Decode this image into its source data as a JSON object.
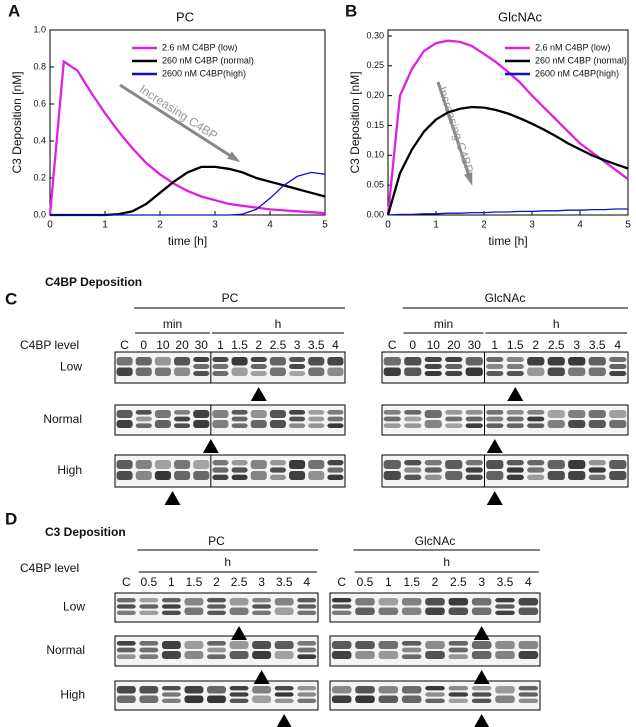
{
  "chart_data": [
    {
      "type": "line",
      "panel": "A",
      "title": "PC",
      "xlabel": "time [h]",
      "ylabel": "C3 Deposition [nM]",
      "annotation": "Increasing C4BP",
      "x": [
        0,
        0.25,
        0.5,
        0.75,
        1,
        1.25,
        1.5,
        1.75,
        2,
        2.25,
        2.5,
        2.75,
        3,
        3.25,
        3.5,
        3.75,
        4,
        4.25,
        4.5,
        4.75,
        5
      ],
      "xlim": [
        0,
        5
      ],
      "xticks": [
        0,
        1,
        2,
        3,
        4,
        5
      ],
      "ylim": [
        0,
        1.0
      ],
      "yticks": [
        {
          "value": 0,
          "label": "0.0"
        },
        0.2,
        0.4,
        0.6,
        0.8,
        {
          "value": 1.0,
          "label": "1.0"
        }
      ],
      "series": [
        {
          "name": "2.6 nM C4BP (low)",
          "color": "#e020e0",
          "values": [
            0,
            0.83,
            0.78,
            0.66,
            0.55,
            0.45,
            0.36,
            0.28,
            0.22,
            0.17,
            0.13,
            0.1,
            0.08,
            0.06,
            0.05,
            0.04,
            0.03,
            0.025,
            0.02,
            0.015,
            0.01
          ]
        },
        {
          "name": "260 nM C4BP (normal)",
          "color": "#000000",
          "values": [
            0,
            0,
            0,
            0,
            0,
            0.005,
            0.02,
            0.06,
            0.12,
            0.18,
            0.23,
            0.26,
            0.26,
            0.25,
            0.23,
            0.2,
            0.18,
            0.16,
            0.14,
            0.12,
            0.1
          ]
        },
        {
          "name": "2600 nM C4BP(high)",
          "color": "#1010c0",
          "values": [
            0,
            0,
            0,
            0,
            0,
            0,
            0,
            0,
            0,
            0,
            0,
            0,
            0,
            0,
            0.005,
            0.03,
            0.09,
            0.16,
            0.21,
            0.23,
            0.22
          ]
        }
      ]
    },
    {
      "type": "line",
      "panel": "B",
      "title": "GlcNAc",
      "xlabel": "time [h]",
      "ylabel": "C3 Deposition [nM]",
      "annotation": "Increasing C4BP",
      "x": [
        0,
        0.25,
        0.5,
        0.75,
        1,
        1.25,
        1.5,
        1.75,
        2,
        2.25,
        2.5,
        2.75,
        3,
        3.25,
        3.5,
        3.75,
        4,
        4.25,
        4.5,
        4.75,
        5
      ],
      "xlim": [
        0,
        5
      ],
      "xticks": [
        0,
        1,
        2,
        3,
        4,
        5
      ],
      "ylim": [
        0,
        0.31
      ],
      "yticks": [
        {
          "value": 0,
          "label": "0.00"
        },
        0.05,
        {
          "value": 0.1,
          "label": "0.10"
        },
        0.15,
        {
          "value": 0.2,
          "label": "0.20"
        },
        0.25,
        {
          "value": 0.3,
          "label": "0.30"
        }
      ],
      "series": [
        {
          "name": "2.6 nM C4BP (low)",
          "color": "#e020e0",
          "values": [
            0,
            0.2,
            0.245,
            0.275,
            0.288,
            0.292,
            0.29,
            0.283,
            0.27,
            0.256,
            0.24,
            0.222,
            0.2,
            0.18,
            0.16,
            0.14,
            0.12,
            0.105,
            0.09,
            0.075,
            0.06
          ]
        },
        {
          "name": "260 nM C4BP (normal)",
          "color": "#000000",
          "values": [
            0,
            0.07,
            0.11,
            0.14,
            0.16,
            0.172,
            0.178,
            0.181,
            0.18,
            0.176,
            0.17,
            0.162,
            0.153,
            0.143,
            0.132,
            0.12,
            0.11,
            0.1,
            0.092,
            0.085,
            0.078
          ]
        },
        {
          "name": "2600 nM C4BP(high)",
          "color": "#1010c0",
          "values": [
            0,
            0.001,
            0.001,
            0.002,
            0.002,
            0.003,
            0.003,
            0.004,
            0.004,
            0.005,
            0.005,
            0.006,
            0.006,
            0.007,
            0.007,
            0.008,
            0.008,
            0.009,
            0.009,
            0.01,
            0.01
          ]
        }
      ]
    }
  ],
  "blots": [
    {
      "panel": "C",
      "title": "C4BP Deposition",
      "row_header": "C4BP level",
      "rows": [
        "Low",
        "Normal",
        "High"
      ],
      "groups": [
        {
          "title": "PC",
          "units": [
            "min",
            "h"
          ],
          "lanes": [
            "C",
            "0",
            "10",
            "20",
            "30",
            "1",
            "1.5",
            "2",
            "2.5",
            "3",
            "3.5",
            "4"
          ]
        },
        {
          "title": "GlcNAc",
          "units": [
            "min",
            "h"
          ],
          "lanes": [
            "C",
            "0",
            "10",
            "20",
            "30",
            "1",
            "1.5",
            "2",
            "2.5",
            "3",
            "3.5",
            "4"
          ]
        }
      ]
    },
    {
      "panel": "D",
      "title": "C3 Deposition",
      "row_header": "C4BP level",
      "rows": [
        "Low",
        "Normal",
        "High"
      ],
      "groups": [
        {
          "title": "PC",
          "units": [
            "h"
          ],
          "lanes": [
            "C",
            "0.5",
            "1",
            "1.5",
            "2",
            "2.5",
            "3",
            "3.5",
            "4"
          ]
        },
        {
          "title": "GlcNAc",
          "units": [
            "h"
          ],
          "lanes": [
            "C",
            "0.5",
            "1",
            "1.5",
            "2",
            "2.5",
            "3",
            "3.5",
            "4"
          ]
        }
      ]
    }
  ]
}
